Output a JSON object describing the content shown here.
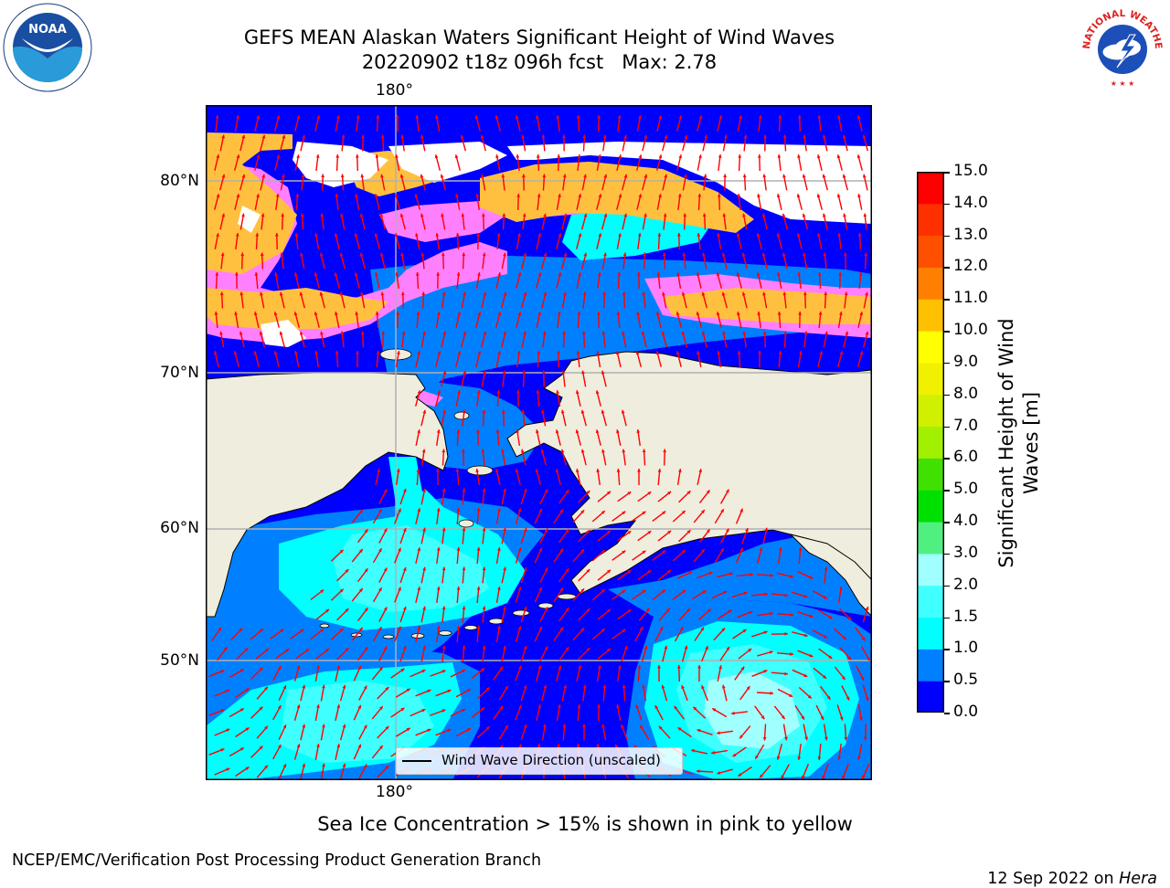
{
  "title": {
    "line1": "GEFS MEAN Alaskan Waters Significant Height of Wind Waves",
    "line2": "20220902 t18z 096h fcst   Max: 2.78"
  },
  "map": {
    "lon_label_top": "180°",
    "lon_label_bottom": "180°",
    "lat_labels": [
      "80°N",
      "70°N",
      "60°N",
      "50°N"
    ],
    "legend_label": "Wind Wave Direction (unscaled)",
    "colors": {
      "land": "#efedde",
      "ocean_0": "#0000ff",
      "ocean_05": "#0080ff",
      "ocean_1": "#00ffff",
      "ocean_2": "#a0ffff",
      "ice_pink": "#ff80ff",
      "ice_orange": "#ffc040",
      "arrow": "#ff0000",
      "grid": "#b0b0b0"
    }
  },
  "colorbar": {
    "label_line1": "Significant Height of Wind",
    "label_line2": "Waves [m]",
    "ticks": [
      "15.0",
      "14.0",
      "13.0",
      "12.0",
      "11.0",
      "10.0",
      "9.0",
      "8.0",
      "7.0",
      "6.0",
      "5.0",
      "4.0",
      "3.0",
      "2.0",
      "1.5",
      "1.0",
      "0.5",
      "0.0"
    ],
    "colors": [
      "#0000ff",
      "#0080ff",
      "#00ffff",
      "#40ffff",
      "#a0ffff",
      "#50f080",
      "#00e000",
      "#40e000",
      "#a0f000",
      "#d0f000",
      "#f0f000",
      "#ffff00",
      "#ffc000",
      "#ff8000",
      "#ff5000",
      "#ff3000",
      "#ff0000"
    ]
  },
  "subtitle": "Sea Ice Concentration > 15% is shown in pink to yellow",
  "footer": {
    "left": "NCEP/EMC/Verification Post Processing Product Generation Branch",
    "right_prefix": "12 Sep 2022 on ",
    "right_machine": "Hera"
  },
  "logos": {
    "noaa_text": "NOAA",
    "nws_text": "NATIONAL WEATHER SERVICE"
  }
}
